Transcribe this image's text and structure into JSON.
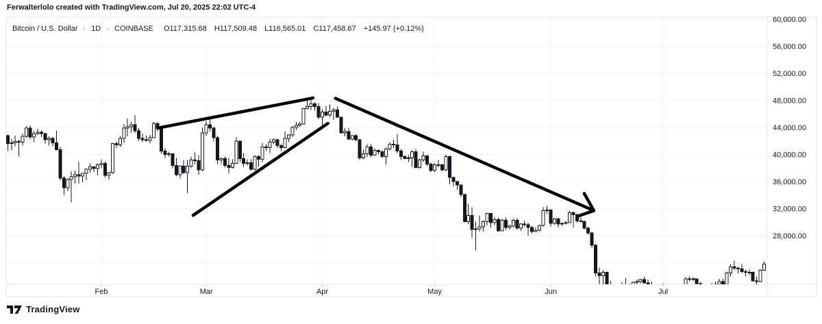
{
  "attribution": "Ferwalterlolo created with TradingView.com, Jul 20, 2025 22:02 UTC-4",
  "legend": {
    "symbol": "Bitcoin / U.S. Dollar",
    "separator": "·",
    "interval": "1D",
    "exchange": "COINBASE",
    "open": "O117,315.68",
    "high": "H117,509.48",
    "low": "L116,565.01",
    "close": "C117,458.67",
    "change": "+145.97 (+0.12%)"
  },
  "footer": {
    "brand": "TradingView"
  },
  "colors": {
    "background": "#ffffff",
    "text": "#131722",
    "grid": "#f0f3fa",
    "frame": "#e0e3eb",
    "tick": "#d1d4dc",
    "candle_up_fill": "#ffffff",
    "candle_down_fill": "#131722",
    "candle_stroke": "#131722",
    "drawing": "#000000"
  },
  "chart_data": {
    "type": "candlestick",
    "title": "Bitcoin / U.S. Dollar, 1D, COINBASE",
    "x_axis": {
      "month_labels": [
        "Feb",
        "Mar",
        "Apr",
        "May",
        "Jun",
        "Jul"
      ],
      "month_day_index": [
        25,
        53,
        84,
        114,
        145,
        175
      ],
      "first_candle_date": "Jan 7",
      "last_candle_date": "Jul 28"
    },
    "y_axis": {
      "tick_labels": [
        "60,000.00",
        "56,000.00",
        "52,000.00",
        "48,000.00",
        "44,000.00",
        "40,000.00",
        "36,000.00",
        "32,000.00",
        "28,000.00"
      ],
      "tick_values_k": [
        60,
        56,
        52,
        48,
        44,
        40,
        36,
        32,
        28
      ],
      "unlabeled_grid_k": [
        24
      ],
      "units": "USD thousands",
      "visible_min_k": 20.8,
      "visible_max_k": 60.3,
      "grid": true,
      "legend_position": "top-left"
    },
    "candles_ohlc_k": [
      [
        42.8,
        43.0,
        40.5,
        41.6
      ],
      [
        41.6,
        42.3,
        40.6,
        41.7
      ],
      [
        41.7,
        42.8,
        41.2,
        41.9
      ],
      [
        41.9,
        42.2,
        39.7,
        41.8
      ],
      [
        41.8,
        43.1,
        41.3,
        42.7
      ],
      [
        42.7,
        44.2,
        42.5,
        43.9
      ],
      [
        43.9,
        44.3,
        42.3,
        42.6
      ],
      [
        42.6,
        43.5,
        41.8,
        43.1
      ],
      [
        43.1,
        43.8,
        42.9,
        43.3
      ],
      [
        43.3,
        43.6,
        42.6,
        43.1
      ],
      [
        43.1,
        43.2,
        41.6,
        42.2
      ],
      [
        42.2,
        42.7,
        41.3,
        42.4
      ],
      [
        42.4,
        42.6,
        41.2,
        41.7
      ],
      [
        41.7,
        43.5,
        40.6,
        40.7
      ],
      [
        40.7,
        41.1,
        36.2,
        36.5
      ],
      [
        36.5,
        36.8,
        34.0,
        35.1
      ],
      [
        35.1,
        36.5,
        34.6,
        36.3
      ],
      [
        36.3,
        37.5,
        32.9,
        36.7
      ],
      [
        36.7,
        37.6,
        35.7,
        37.0
      ],
      [
        37.0,
        38.9,
        35.7,
        36.8
      ],
      [
        36.8,
        37.2,
        35.9,
        37.2
      ],
      [
        37.2,
        38.0,
        36.2,
        37.8
      ],
      [
        37.8,
        38.7,
        37.3,
        38.2
      ],
      [
        38.2,
        38.3,
        37.4,
        37.9
      ],
      [
        37.9,
        38.7,
        36.9,
        38.5
      ],
      [
        38.5,
        39.3,
        38.0,
        38.7
      ],
      [
        38.7,
        39.0,
        36.6,
        36.9
      ],
      [
        36.9,
        37.4,
        36.3,
        37.3
      ],
      [
        37.3,
        41.7,
        37.1,
        41.6
      ],
      [
        41.6,
        41.9,
        40.9,
        41.4
      ],
      [
        41.4,
        42.7,
        41.1,
        42.4
      ],
      [
        42.4,
        44.5,
        41.7,
        43.9
      ],
      [
        43.9,
        45.3,
        42.7,
        44.1
      ],
      [
        44.1,
        44.8,
        43.2,
        44.4
      ],
      [
        44.4,
        45.8,
        43.2,
        43.5
      ],
      [
        43.5,
        43.9,
        42.0,
        42.4
      ],
      [
        42.4,
        43.1,
        41.8,
        42.2
      ],
      [
        42.2,
        42.8,
        41.9,
        42.1
      ],
      [
        42.1,
        42.9,
        41.6,
        42.5
      ],
      [
        42.5,
        44.8,
        42.5,
        44.6
      ],
      [
        44.6,
        44.6,
        43.4,
        43.9
      ],
      [
        43.9,
        44.2,
        40.1,
        40.5
      ],
      [
        40.5,
        40.9,
        39.5,
        40.0
      ],
      [
        40.0,
        40.4,
        39.7,
        40.1
      ],
      [
        40.1,
        40.1,
        38.0,
        38.4
      ],
      [
        38.4,
        39.5,
        36.8,
        37.0
      ],
      [
        37.0,
        38.4,
        36.4,
        38.3
      ],
      [
        38.3,
        39.2,
        37.1,
        37.3
      ],
      [
        37.3,
        39.2,
        34.3,
        38.3
      ],
      [
        38.3,
        39.7,
        38.0,
        39.2
      ],
      [
        39.2,
        40.3,
        38.6,
        39.1
      ],
      [
        39.1,
        39.9,
        37.0,
        37.7
      ],
      [
        37.7,
        44.0,
        37.5,
        43.2
      ],
      [
        43.2,
        44.9,
        42.8,
        44.4
      ],
      [
        44.4,
        45.4,
        43.4,
        43.9
      ],
      [
        43.9,
        44.1,
        41.9,
        42.5
      ],
      [
        42.5,
        42.8,
        38.6,
        39.2
      ],
      [
        39.2,
        39.6,
        38.6,
        39.4
      ],
      [
        39.4,
        39.7,
        38.1,
        38.4
      ],
      [
        38.4,
        39.5,
        37.2,
        38.1
      ],
      [
        38.1,
        39.3,
        37.9,
        38.7
      ],
      [
        38.7,
        42.6,
        38.7,
        42.0
      ],
      [
        42.0,
        42.0,
        38.9,
        39.4
      ],
      [
        39.4,
        40.2,
        38.2,
        38.7
      ],
      [
        38.7,
        39.3,
        38.4,
        38.8
      ],
      [
        38.8,
        39.3,
        37.6,
        37.8
      ],
      [
        37.8,
        39.9,
        37.6,
        39.7
      ],
      [
        39.7,
        39.9,
        38.2,
        39.3
      ],
      [
        39.3,
        41.7,
        38.9,
        41.1
      ],
      [
        41.1,
        41.5,
        40.5,
        41.0
      ],
      [
        41.0,
        42.3,
        40.2,
        41.8
      ],
      [
        41.8,
        42.4,
        41.5,
        42.2
      ],
      [
        42.2,
        42.3,
        40.9,
        41.3
      ],
      [
        41.3,
        41.5,
        40.5,
        41.0
      ],
      [
        41.0,
        43.4,
        40.9,
        42.4
      ],
      [
        42.4,
        43.0,
        41.8,
        42.9
      ],
      [
        42.9,
        44.2,
        42.6,
        44.0
      ],
      [
        44.0,
        44.8,
        43.6,
        44.3
      ],
      [
        44.3,
        44.8,
        44.1,
        44.5
      ],
      [
        44.5,
        46.9,
        44.4,
        46.8
      ],
      [
        46.8,
        48.1,
        46.7,
        47.1
      ],
      [
        47.1,
        48.0,
        46.6,
        47.5
      ],
      [
        47.5,
        47.7,
        46.5,
        47.1
      ],
      [
        47.1,
        47.6,
        45.2,
        45.5
      ],
      [
        45.5,
        46.7,
        44.3,
        46.3
      ],
      [
        46.3,
        47.2,
        45.6,
        45.8
      ],
      [
        45.8,
        47.4,
        45.5,
        46.4
      ],
      [
        46.4,
        46.9,
        45.1,
        46.6
      ],
      [
        46.6,
        47.1,
        45.4,
        45.5
      ],
      [
        45.5,
        45.5,
        43.1,
        43.2
      ],
      [
        43.2,
        43.9,
        42.7,
        43.4
      ],
      [
        43.4,
        43.9,
        42.1,
        42.3
      ],
      [
        42.3,
        42.8,
        42.1,
        42.8
      ],
      [
        42.8,
        43.0,
        41.9,
        42.2
      ],
      [
        42.2,
        42.3,
        39.2,
        39.5
      ],
      [
        39.5,
        40.7,
        39.3,
        40.1
      ],
      [
        40.1,
        41.5,
        39.6,
        41.1
      ],
      [
        41.1,
        41.5,
        39.6,
        39.9
      ],
      [
        39.9,
        40.9,
        39.8,
        40.6
      ],
      [
        40.6,
        40.7,
        40.0,
        40.4
      ],
      [
        40.4,
        40.6,
        39.5,
        39.7
      ],
      [
        39.7,
        41.0,
        38.5,
        40.8
      ],
      [
        40.8,
        41.8,
        40.6,
        41.5
      ],
      [
        41.5,
        42.2,
        40.9,
        41.4
      ],
      [
        41.4,
        43.0,
        40.2,
        40.5
      ],
      [
        40.5,
        40.8,
        39.2,
        39.7
      ],
      [
        39.7,
        39.9,
        39.3,
        39.4
      ],
      [
        39.4,
        39.9,
        38.9,
        39.5
      ],
      [
        39.5,
        40.6,
        38.2,
        40.4
      ],
      [
        40.4,
        40.8,
        37.9,
        38.1
      ],
      [
        38.1,
        39.4,
        37.9,
        39.2
      ],
      [
        39.2,
        40.4,
        38.9,
        39.8
      ],
      [
        39.8,
        39.9,
        38.3,
        38.6
      ],
      [
        38.6,
        38.8,
        37.4,
        37.6
      ],
      [
        37.6,
        38.7,
        37.4,
        38.5
      ],
      [
        38.5,
        39.2,
        38.1,
        38.5
      ],
      [
        38.5,
        38.6,
        37.5,
        37.7
      ],
      [
        37.7,
        40.0,
        37.5,
        39.7
      ],
      [
        39.7,
        39.8,
        35.6,
        36.6
      ],
      [
        36.6,
        36.7,
        35.3,
        36.0
      ],
      [
        36.0,
        36.1,
        34.8,
        35.5
      ],
      [
        35.5,
        35.5,
        33.7,
        34.1
      ],
      [
        34.1,
        34.2,
        30.0,
        30.1
      ],
      [
        30.1,
        32.7,
        29.7,
        31.0
      ],
      [
        31.0,
        32.2,
        27.7,
        28.9
      ],
      [
        28.9,
        30.1,
        25.8,
        29.0
      ],
      [
        29.0,
        31.0,
        28.6,
        29.3
      ],
      [
        29.3,
        30.3,
        28.6,
        30.1
      ],
      [
        30.1,
        31.4,
        29.5,
        31.3
      ],
      [
        31.3,
        31.3,
        29.2,
        29.9
      ],
      [
        29.9,
        30.8,
        29.5,
        30.4
      ],
      [
        30.4,
        30.7,
        28.6,
        28.7
      ],
      [
        28.7,
        30.5,
        28.7,
        30.3
      ],
      [
        30.3,
        30.7,
        28.8,
        29.2
      ],
      [
        29.2,
        29.6,
        28.9,
        29.4
      ],
      [
        29.4,
        30.5,
        29.2,
        30.3
      ],
      [
        30.3,
        30.6,
        28.9,
        29.1
      ],
      [
        29.1,
        29.8,
        28.7,
        29.7
      ],
      [
        29.7,
        30.2,
        29.3,
        29.6
      ],
      [
        29.6,
        29.9,
        28.0,
        29.2
      ],
      [
        29.2,
        29.4,
        28.3,
        28.6
      ],
      [
        28.6,
        29.2,
        28.5,
        28.8
      ],
      [
        28.8,
        29.6,
        28.6,
        29.5
      ],
      [
        29.5,
        32.2,
        29.3,
        31.7
      ],
      [
        31.7,
        32.4,
        31.2,
        31.8
      ],
      [
        31.8,
        31.9,
        29.3,
        29.8
      ],
      [
        29.8,
        30.6,
        29.6,
        30.5
      ],
      [
        30.5,
        30.7,
        29.2,
        29.7
      ],
      [
        29.7,
        29.9,
        29.4,
        29.8
      ],
      [
        29.8,
        30.2,
        29.6,
        29.9
      ],
      [
        29.9,
        31.7,
        29.9,
        31.4
      ],
      [
        31.4,
        31.6,
        29.2,
        31.1
      ],
      [
        31.1,
        31.3,
        29.9,
        30.2
      ],
      [
        30.2,
        30.7,
        30.0,
        30.1
      ],
      [
        30.1,
        30.3,
        28.9,
        29.1
      ],
      [
        29.1,
        29.3,
        28.1,
        28.4
      ],
      [
        28.4,
        28.5,
        26.2,
        26.6
      ],
      [
        26.6,
        26.8,
        22.0,
        22.5
      ],
      [
        22.5,
        23.3,
        20.8,
        22.1
      ],
      [
        22.1,
        22.9,
        20.1,
        22.6
      ],
      [
        22.6,
        22.7,
        20.2,
        20.4
      ],
      [
        20.4,
        21.3,
        20.3,
        20.5
      ],
      [
        20.5,
        20.8,
        17.6,
        19.0
      ],
      [
        19.0,
        20.8,
        18.0,
        20.6
      ],
      [
        20.6,
        21.1,
        19.6,
        20.6
      ],
      [
        20.6,
        21.7,
        20.4,
        20.7
      ],
      [
        20.7,
        20.9,
        19.8,
        20.0
      ],
      [
        20.0,
        21.2,
        19.9,
        21.1
      ],
      [
        21.1,
        21.5,
        20.7,
        21.2
      ],
      [
        21.2,
        21.6,
        20.9,
        21.5
      ],
      [
        21.5,
        21.9,
        20.9,
        21.0
      ],
      [
        21.0,
        21.5,
        20.5,
        20.7
      ],
      [
        20.7,
        21.2,
        20.2,
        20.3
      ],
      [
        20.3,
        20.4,
        19.8,
        20.1
      ],
      [
        20.1,
        20.1,
        18.6,
        19.9
      ],
      [
        19.9,
        20.9,
        19.0,
        19.3
      ],
      [
        19.3,
        19.4,
        18.9,
        19.2
      ],
      [
        19.2,
        19.6,
        18.8,
        19.3
      ],
      [
        19.3,
        20.3,
        19.1,
        20.2
      ],
      [
        20.2,
        20.7,
        19.3,
        20.2
      ],
      [
        20.2,
        20.6,
        19.8,
        20.5
      ],
      [
        20.5,
        21.8,
        20.3,
        21.6
      ],
      [
        21.6,
        22.0,
        21.2,
        21.6
      ],
      [
        21.6,
        21.8,
        21.3,
        21.6
      ],
      [
        21.6,
        21.6,
        20.7,
        20.9
      ],
      [
        20.9,
        21.1,
        19.9,
        20.0
      ],
      [
        20.0,
        20.1,
        19.2,
        19.3
      ],
      [
        19.3,
        20.3,
        18.9,
        20.2
      ],
      [
        20.2,
        21.0,
        19.6,
        20.6
      ],
      [
        20.6,
        21.2,
        20.4,
        20.8
      ],
      [
        20.8,
        21.6,
        20.5,
        21.2
      ],
      [
        21.2,
        21.6,
        20.7,
        20.8
      ],
      [
        20.8,
        22.7,
        20.8,
        22.5
      ],
      [
        22.5,
        23.8,
        21.9,
        23.4
      ],
      [
        23.4,
        24.3,
        22.9,
        23.2
      ],
      [
        23.2,
        23.4,
        22.4,
        23.1
      ],
      [
        23.1,
        23.8,
        22.5,
        22.7
      ],
      [
        22.7,
        23.0,
        22.0,
        22.6
      ],
      [
        22.6,
        23.0,
        22.2,
        22.6
      ],
      [
        22.6,
        22.7,
        21.2,
        21.3
      ],
      [
        21.3,
        21.9,
        20.7,
        21.2
      ],
      [
        21.2,
        23.0,
        21.1,
        22.9
      ],
      [
        22.9,
        24.2,
        22.8,
        23.8
      ]
    ],
    "drawings": [
      {
        "name": "rising-wedge-upper-line",
        "from_day": 40,
        "from_k": 43.9,
        "to_day": 81.5,
        "to_k": 48.35,
        "arrow": false
      },
      {
        "name": "rising-wedge-lower-line",
        "from_day": 49.5,
        "from_k": 31.0,
        "to_day": 85.5,
        "to_k": 44.6,
        "arrow": false
      },
      {
        "name": "breakdown-trend-arrow",
        "from_day": 87.5,
        "from_k": 48.3,
        "to_day": 156.5,
        "to_k": 31.7,
        "arrow": true
      }
    ]
  }
}
